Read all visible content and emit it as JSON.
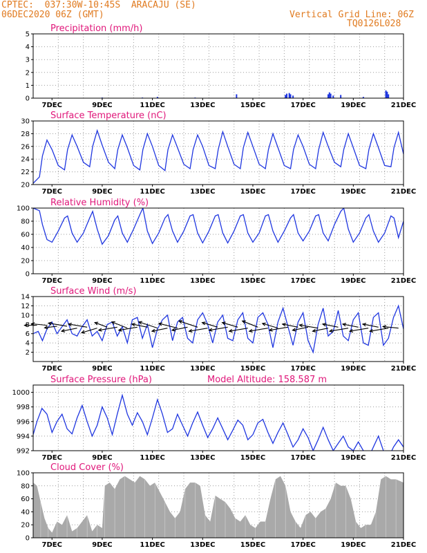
{
  "header": {
    "source": "CPTEC:",
    "coords": "037:30W-10:45S",
    "station": "ARACAJU (SE)",
    "init_time": "06DEC2020 06Z (GMT)",
    "grid_note": "Vertical Grid Line: 06Z",
    "model_code": "TQ0126L028"
  },
  "colors": {
    "header": "#e07a1f",
    "title": "#e0177a",
    "line": "#1f36e0",
    "cloud": "#a9a9a9",
    "frame": "#000000",
    "grid": "#999999"
  },
  "x_axis": {
    "start_day": 6.25,
    "end_day": 21,
    "tick_days": [
      7,
      9,
      11,
      13,
      15,
      17,
      19,
      21
    ],
    "tick_labels": [
      "7DEC",
      "9DEC",
      "11DEC",
      "13DEC",
      "15DEC",
      "17DEC",
      "19DEC",
      "21DEC"
    ]
  },
  "chart_data": [
    {
      "type": "bar",
      "title": "Precipitation (mm/h)",
      "ylim": [
        0,
        5
      ],
      "yticks": [
        0,
        1,
        2,
        3,
        4,
        5
      ],
      "x": [
        9.0,
        10.6,
        11.2,
        12.7,
        14.35,
        16.3,
        16.35,
        16.45,
        16.5,
        16.6,
        18.0,
        18.05,
        18.1,
        18.2,
        18.5,
        19.4,
        20.3,
        20.35,
        20.4
      ],
      "values": [
        0.05,
        0.05,
        0.1,
        0.05,
        0.3,
        0.25,
        0.35,
        0.4,
        0.3,
        0.2,
        0.3,
        0.45,
        0.35,
        0.2,
        0.25,
        0.1,
        0.6,
        0.5,
        0.3
      ]
    },
    {
      "type": "line",
      "title": "Surface Temperature (nC)",
      "ylim": [
        20,
        30
      ],
      "yticks": [
        20,
        22,
        24,
        26,
        28,
        30
      ],
      "x": [
        6.25,
        6.5,
        6.62,
        6.8,
        7.0,
        7.25,
        7.5,
        7.62,
        7.8,
        8.0,
        8.25,
        8.5,
        8.62,
        8.8,
        9.0,
        9.25,
        9.5,
        9.62,
        9.8,
        10.0,
        10.25,
        10.5,
        10.62,
        10.8,
        11.0,
        11.25,
        11.5,
        11.62,
        11.8,
        12.0,
        12.25,
        12.5,
        12.62,
        12.8,
        13.0,
        13.25,
        13.5,
        13.62,
        13.8,
        14.0,
        14.25,
        14.5,
        14.62,
        14.8,
        15.0,
        15.25,
        15.5,
        15.62,
        15.8,
        16.0,
        16.25,
        16.5,
        16.62,
        16.8,
        17.0,
        17.25,
        17.5,
        17.62,
        17.8,
        18.0,
        18.25,
        18.5,
        18.62,
        18.8,
        19.0,
        19.25,
        19.5,
        19.62,
        19.8,
        20.0,
        20.25,
        20.5,
        20.62,
        20.8,
        21.0
      ],
      "values": [
        20.2,
        21.2,
        24.5,
        27.0,
        25.5,
        23.0,
        22.3,
        25.5,
        27.8,
        26.0,
        23.5,
        22.8,
        26.0,
        28.5,
        26.2,
        23.5,
        22.5,
        25.5,
        27.8,
        25.8,
        23.0,
        22.3,
        25.5,
        28.0,
        26.0,
        23.0,
        22.2,
        25.5,
        27.8,
        25.8,
        23.2,
        22.5,
        25.5,
        27.8,
        26.0,
        23.0,
        22.5,
        25.5,
        28.3,
        26.0,
        23.2,
        22.5,
        25.8,
        28.2,
        26.0,
        23.2,
        22.5,
        25.5,
        28.0,
        25.8,
        23.0,
        22.5,
        25.5,
        27.8,
        26.0,
        23.2,
        22.5,
        25.5,
        28.2,
        26.0,
        23.5,
        22.8,
        25.5,
        28.0,
        25.8,
        23.0,
        22.5,
        25.5,
        28.0,
        25.8,
        23.0,
        22.8,
        25.8,
        28.2,
        24.8
      ]
    },
    {
      "type": "line",
      "title": "Relative Humidity (%)",
      "ylim": [
        0,
        100
      ],
      "yticks": [
        0,
        20,
        40,
        60,
        80,
        100
      ],
      "x": [
        6.25,
        6.5,
        6.62,
        6.8,
        7.0,
        7.25,
        7.5,
        7.62,
        7.8,
        8.0,
        8.25,
        8.5,
        8.62,
        8.8,
        9.0,
        9.25,
        9.5,
        9.62,
        9.8,
        10.0,
        10.25,
        10.5,
        10.62,
        10.8,
        11.0,
        11.25,
        11.5,
        11.62,
        11.8,
        12.0,
        12.25,
        12.5,
        12.62,
        12.8,
        13.0,
        13.25,
        13.5,
        13.62,
        13.8,
        14.0,
        14.25,
        14.5,
        14.62,
        14.8,
        15.0,
        15.25,
        15.5,
        15.62,
        15.8,
        16.0,
        16.25,
        16.5,
        16.62,
        16.8,
        17.0,
        17.25,
        17.5,
        17.62,
        17.8,
        18.0,
        18.25,
        18.5,
        18.62,
        18.8,
        19.0,
        19.25,
        19.5,
        19.62,
        19.8,
        20.0,
        20.25,
        20.5,
        20.62,
        20.8,
        21.0
      ],
      "values": [
        100,
        96,
        75,
        52,
        48,
        65,
        85,
        88,
        62,
        48,
        62,
        85,
        95,
        68,
        45,
        58,
        82,
        88,
        62,
        48,
        68,
        90,
        100,
        65,
        46,
        62,
        85,
        90,
        65,
        48,
        65,
        88,
        90,
        62,
        47,
        65,
        88,
        90,
        62,
        47,
        65,
        88,
        90,
        62,
        48,
        62,
        88,
        90,
        65,
        48,
        65,
        85,
        90,
        62,
        50,
        65,
        88,
        90,
        62,
        50,
        75,
        95,
        100,
        68,
        48,
        62,
        85,
        90,
        65,
        48,
        62,
        88,
        85,
        55,
        80
      ]
    },
    {
      "type": "line",
      "title": "Surface Wind (m/s)",
      "ylim": [
        0,
        14
      ],
      "yticks": [
        2,
        4,
        6,
        8,
        10,
        12,
        14
      ],
      "x": [
        6.25,
        6.45,
        6.62,
        6.8,
        7.0,
        7.2,
        7.4,
        7.6,
        7.8,
        8.0,
        8.2,
        8.4,
        8.6,
        8.8,
        9.0,
        9.2,
        9.4,
        9.6,
        9.8,
        10.0,
        10.2,
        10.4,
        10.6,
        10.8,
        11.0,
        11.2,
        11.4,
        11.6,
        11.8,
        12.0,
        12.2,
        12.4,
        12.6,
        12.8,
        13.0,
        13.2,
        13.4,
        13.6,
        13.8,
        14.0,
        14.2,
        14.4,
        14.6,
        14.8,
        15.0,
        15.2,
        15.4,
        15.6,
        15.8,
        16.0,
        16.2,
        16.4,
        16.6,
        16.8,
        17.0,
        17.2,
        17.4,
        17.6,
        17.8,
        18.0,
        18.2,
        18.4,
        18.6,
        18.8,
        19.0,
        19.2,
        19.4,
        19.6,
        19.8,
        20.0,
        20.2,
        20.4,
        20.6,
        20.8,
        21.0
      ],
      "values": [
        6.0,
        6.5,
        4.5,
        7.0,
        8.5,
        6.0,
        7.5,
        9.0,
        6.0,
        5.5,
        7.5,
        9.0,
        5.5,
        6.5,
        4.5,
        8.0,
        8.5,
        5.5,
        7.5,
        4.0,
        9.0,
        9.5,
        5.0,
        8.0,
        3.0,
        7.0,
        9.0,
        10.0,
        4.5,
        8.5,
        9.5,
        5.0,
        4.0,
        9.0,
        10.5,
        8.0,
        4.0,
        8.5,
        10.0,
        5.0,
        4.5,
        9.0,
        10.5,
        5.0,
        4.0,
        9.5,
        10.5,
        8.0,
        3.0,
        8.5,
        11.5,
        7.5,
        3.5,
        8.5,
        10.5,
        4.5,
        2.0,
        8.0,
        11.5,
        5.5,
        6.5,
        11.0,
        5.5,
        4.5,
        9.0,
        10.5,
        4.0,
        3.5,
        9.5,
        10.5,
        3.5,
        5.0,
        9.5,
        12.0,
        7.0
      ]
    },
    {
      "type": "line",
      "title": "Surface Pressure (hPa)",
      "annotation": "Model Altitude: 158.587 m",
      "ylim": [
        992,
        1001
      ],
      "yticks": [
        992,
        994,
        996,
        998,
        1000
      ],
      "x": [
        6.25,
        6.4,
        6.6,
        6.8,
        7.0,
        7.2,
        7.4,
        7.6,
        7.8,
        8.0,
        8.2,
        8.4,
        8.6,
        8.8,
        9.0,
        9.2,
        9.4,
        9.6,
        9.8,
        10.0,
        10.2,
        10.4,
        10.6,
        10.8,
        11.0,
        11.2,
        11.4,
        11.6,
        11.8,
        12.0,
        12.2,
        12.4,
        12.6,
        12.8,
        13.0,
        13.2,
        13.4,
        13.6,
        13.8,
        14.0,
        14.2,
        14.4,
        14.6,
        14.8,
        15.0,
        15.2,
        15.4,
        15.6,
        15.8,
        16.0,
        16.2,
        16.4,
        16.6,
        16.8,
        17.0,
        17.2,
        17.4,
        17.6,
        17.8,
        18.0,
        18.2,
        18.4,
        18.6,
        18.8,
        19.0,
        19.2,
        19.4,
        19.6,
        19.8,
        20.0,
        20.2,
        20.4,
        20.6,
        20.8,
        21.0
      ],
      "values": [
        994.2,
        996.0,
        997.8,
        997.0,
        994.5,
        996.0,
        997.0,
        995.0,
        994.3,
        996.5,
        998.2,
        996.0,
        994.0,
        995.5,
        998.0,
        996.5,
        994.2,
        997.0,
        999.6,
        997.0,
        995.5,
        997.2,
        996.0,
        994.2,
        996.5,
        999.0,
        997.0,
        994.5,
        995.0,
        997.0,
        995.5,
        994.0,
        995.8,
        997.3,
        995.5,
        993.8,
        995.0,
        996.5,
        995.0,
        993.5,
        994.8,
        996.2,
        995.5,
        993.5,
        994.2,
        995.8,
        996.3,
        994.5,
        993.0,
        994.5,
        995.8,
        994.2,
        992.5,
        993.5,
        995.0,
        993.8,
        992.0,
        993.5,
        995.2,
        993.5,
        992.0,
        993.0,
        994.0,
        992.5,
        992.0,
        993.2,
        992.0,
        991.0,
        992.5,
        994.0,
        992.0,
        991.0,
        992.5,
        993.5,
        992.5
      ]
    },
    {
      "type": "area",
      "title": "Cloud Cover (%)",
      "ylim": [
        0,
        100
      ],
      "yticks": [
        0,
        20,
        40,
        60,
        80,
        100
      ],
      "x": [
        6.25,
        6.4,
        6.55,
        6.7,
        6.85,
        7.0,
        7.2,
        7.4,
        7.6,
        7.8,
        8.0,
        8.2,
        8.4,
        8.6,
        8.8,
        9.0,
        9.1,
        9.3,
        9.5,
        9.7,
        9.9,
        10.1,
        10.3,
        10.5,
        10.7,
        10.9,
        11.1,
        11.3,
        11.5,
        11.7,
        11.9,
        12.1,
        12.3,
        12.5,
        12.7,
        12.9,
        13.1,
        13.3,
        13.5,
        13.7,
        13.9,
        14.1,
        14.3,
        14.5,
        14.7,
        14.9,
        15.1,
        15.3,
        15.5,
        15.7,
        15.9,
        16.1,
        16.3,
        16.5,
        16.7,
        16.9,
        17.1,
        17.3,
        17.5,
        17.7,
        17.9,
        18.1,
        18.3,
        18.5,
        18.7,
        18.9,
        19.1,
        19.3,
        19.5,
        19.7,
        19.9,
        20.1,
        20.3,
        20.5,
        20.7,
        21.0
      ],
      "values": [
        85,
        80,
        55,
        30,
        15,
        8,
        25,
        20,
        35,
        10,
        15,
        25,
        35,
        10,
        20,
        15,
        80,
        85,
        75,
        90,
        95,
        90,
        85,
        95,
        90,
        80,
        85,
        70,
        55,
        40,
        30,
        40,
        75,
        85,
        85,
        80,
        35,
        25,
        65,
        60,
        55,
        45,
        30,
        25,
        35,
        20,
        15,
        25,
        25,
        60,
        90,
        95,
        80,
        40,
        25,
        15,
        35,
        40,
        30,
        40,
        45,
        60,
        85,
        80,
        80,
        60,
        25,
        15,
        20,
        20,
        40,
        90,
        95,
        90,
        90,
        85
      ]
    }
  ],
  "wind_vectors": {
    "x": [
      6.4,
      6.8,
      7.2,
      7.6,
      8.0,
      8.4,
      8.8,
      9.2,
      9.6,
      10.0,
      10.4,
      10.8,
      11.2,
      11.6,
      12.0,
      12.4,
      12.8,
      13.2,
      13.6,
      14.0,
      14.4,
      14.8,
      15.2,
      15.6,
      16.0,
      16.4,
      16.8,
      17.2,
      17.6,
      18.0,
      18.4,
      18.8,
      19.2,
      19.6,
      20.0,
      20.4,
      20.8
    ],
    "level": [
      7.8,
      7.8,
      7.6,
      7.6,
      7.2,
      7.4,
      7.2,
      7.4,
      7.4,
      7.2,
      7.4,
      7.4,
      7.2,
      7.2,
      7.2,
      7.4,
      7.4,
      7.2,
      7.4,
      7.4,
      7.4,
      7.2,
      7.4,
      7.2,
      7.2,
      7.4,
      7.4,
      7.4,
      7.2,
      7.2,
      7.4,
      7.2,
      7.4,
      7.2,
      7.4,
      7.2,
      7.2
    ],
    "u": [
      -4,
      -5,
      -4,
      -6,
      -5,
      -6,
      -5,
      -4,
      -6,
      -5,
      -6,
      -5,
      -6,
      -5,
      -6,
      -5,
      -6,
      -6,
      -5,
      -6,
      -5,
      -6,
      -5,
      -6,
      -5,
      -6,
      -5,
      -5,
      -6,
      -5,
      -5,
      -6,
      -5,
      -6,
      -5,
      -6,
      -5
    ],
    "v": [
      0,
      0.5,
      -0.5,
      1,
      -1,
      1,
      -1.5,
      1.5,
      -1,
      2,
      -1,
      1,
      2,
      -1,
      1.5,
      -1,
      2,
      -1,
      1.5,
      -1,
      1.5,
      -1,
      2,
      -1,
      1.5,
      -1,
      1,
      -1,
      1,
      -1,
      1,
      -1,
      1,
      -1,
      1,
      -1,
      0.5
    ]
  }
}
